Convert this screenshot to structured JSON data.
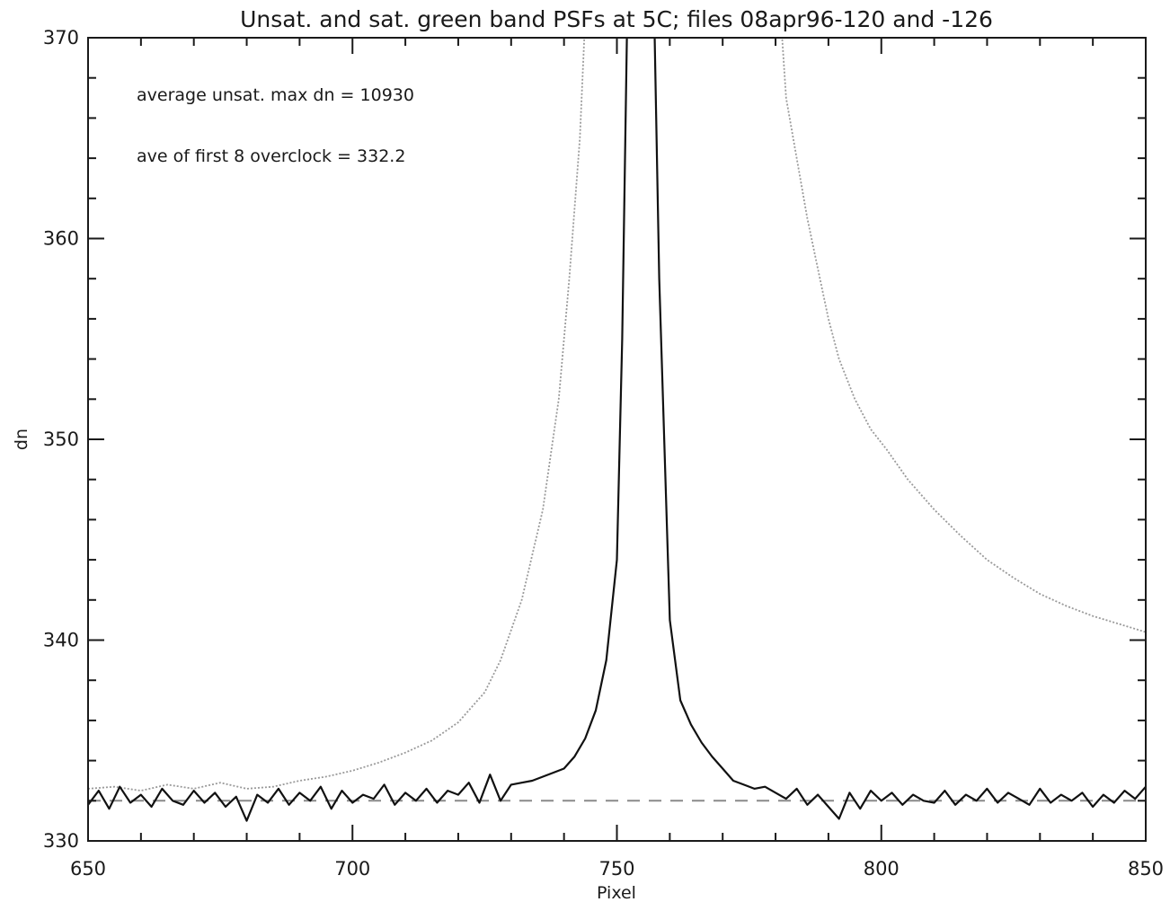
{
  "chart_data": {
    "type": "line",
    "title": "Unsat. and sat. green band PSFs at 5C; files 08apr96-120 and -126",
    "xlabel": "Pixel",
    "ylabel": "dn",
    "xlim": [
      650,
      850
    ],
    "ylim": [
      330,
      370
    ],
    "xticks": [
      650,
      700,
      750,
      800,
      850
    ],
    "yticks": [
      330,
      340,
      350,
      360,
      370
    ],
    "grid": false,
    "annotations": [
      "average unsat. max dn = 10930",
      "ave  of first 8 overclock = 332.2"
    ],
    "series": [
      {
        "style": "solid-black",
        "x": [
          650,
          652,
          654,
          656,
          658,
          660,
          662,
          664,
          666,
          668,
          670,
          672,
          674,
          676,
          678,
          680,
          682,
          684,
          686,
          688,
          690,
          692,
          694,
          696,
          698,
          700,
          702,
          704,
          706,
          708,
          710,
          712,
          714,
          716,
          718,
          720,
          722,
          724,
          726,
          728,
          730,
          732,
          734,
          736,
          738,
          740,
          742,
          744,
          746,
          748,
          750,
          751,
          752,
          757,
          758,
          760,
          762,
          764,
          766,
          768,
          770,
          772,
          774,
          776,
          778,
          780,
          782,
          784,
          786,
          788,
          790,
          792,
          794,
          796,
          798,
          800,
          802,
          804,
          806,
          808,
          810,
          812,
          814,
          816,
          818,
          820,
          822,
          824,
          826,
          828,
          830,
          832,
          834,
          836,
          838,
          840,
          842,
          844,
          846,
          848,
          850
        ],
        "y": [
          331.8,
          332.5,
          331.6,
          332.7,
          331.9,
          332.3,
          331.7,
          332.6,
          332.0,
          331.8,
          332.5,
          331.9,
          332.4,
          331.7,
          332.2,
          331.0,
          332.3,
          331.9,
          332.6,
          331.8,
          332.4,
          332.0,
          332.7,
          331.6,
          332.5,
          331.9,
          332.3,
          332.1,
          332.8,
          331.8,
          332.4,
          332.0,
          332.6,
          331.9,
          332.5,
          332.3,
          332.9,
          331.9,
          333.3,
          332.0,
          332.8,
          332.9,
          333.0,
          333.2,
          333.4,
          333.6,
          334.2,
          335.1,
          336.5,
          339.0,
          344.0,
          355.0,
          372.0,
          372.0,
          358.0,
          341.0,
          337.0,
          335.8,
          334.9,
          334.2,
          333.6,
          333.0,
          332.8,
          332.6,
          332.7,
          332.4,
          332.1,
          332.6,
          331.8,
          332.3,
          331.7,
          331.1,
          332.4,
          331.6,
          332.5,
          332.0,
          332.4,
          331.8,
          332.3,
          332.0,
          331.9,
          332.5,
          331.8,
          332.3,
          332.0,
          332.6,
          331.9,
          332.4,
          332.1,
          331.8,
          332.6,
          331.9,
          332.3,
          332.0,
          332.4,
          331.7,
          332.3,
          331.9,
          332.5,
          332.1,
          332.7
        ]
      },
      {
        "style": "dotted-gray",
        "x": [
          650,
          655,
          660,
          665,
          670,
          675,
          680,
          685,
          690,
          695,
          700,
          705,
          710,
          715,
          720,
          725,
          728,
          732,
          736,
          739,
          741,
          743,
          744,
          781,
          782,
          784,
          786,
          788,
          790,
          792,
          795,
          798,
          801,
          805,
          810,
          815,
          820,
          825,
          830,
          835,
          840,
          845,
          850
        ],
        "y": [
          332.6,
          332.7,
          332.5,
          332.8,
          332.6,
          332.9,
          332.6,
          332.7,
          333.0,
          333.2,
          333.5,
          333.9,
          334.4,
          335.0,
          335.9,
          337.4,
          339.0,
          342.0,
          346.5,
          352.0,
          358.0,
          365.0,
          371.0,
          371.0,
          367.0,
          364.0,
          361.0,
          358.5,
          356.0,
          354.0,
          352.0,
          350.5,
          349.5,
          348.0,
          346.5,
          345.2,
          344.0,
          343.1,
          342.3,
          341.7,
          341.2,
          340.8,
          340.4
        ]
      },
      {
        "style": "dashed-gray",
        "x": [
          650,
          850
        ],
        "y": [
          332.0,
          332.0
        ]
      }
    ]
  }
}
